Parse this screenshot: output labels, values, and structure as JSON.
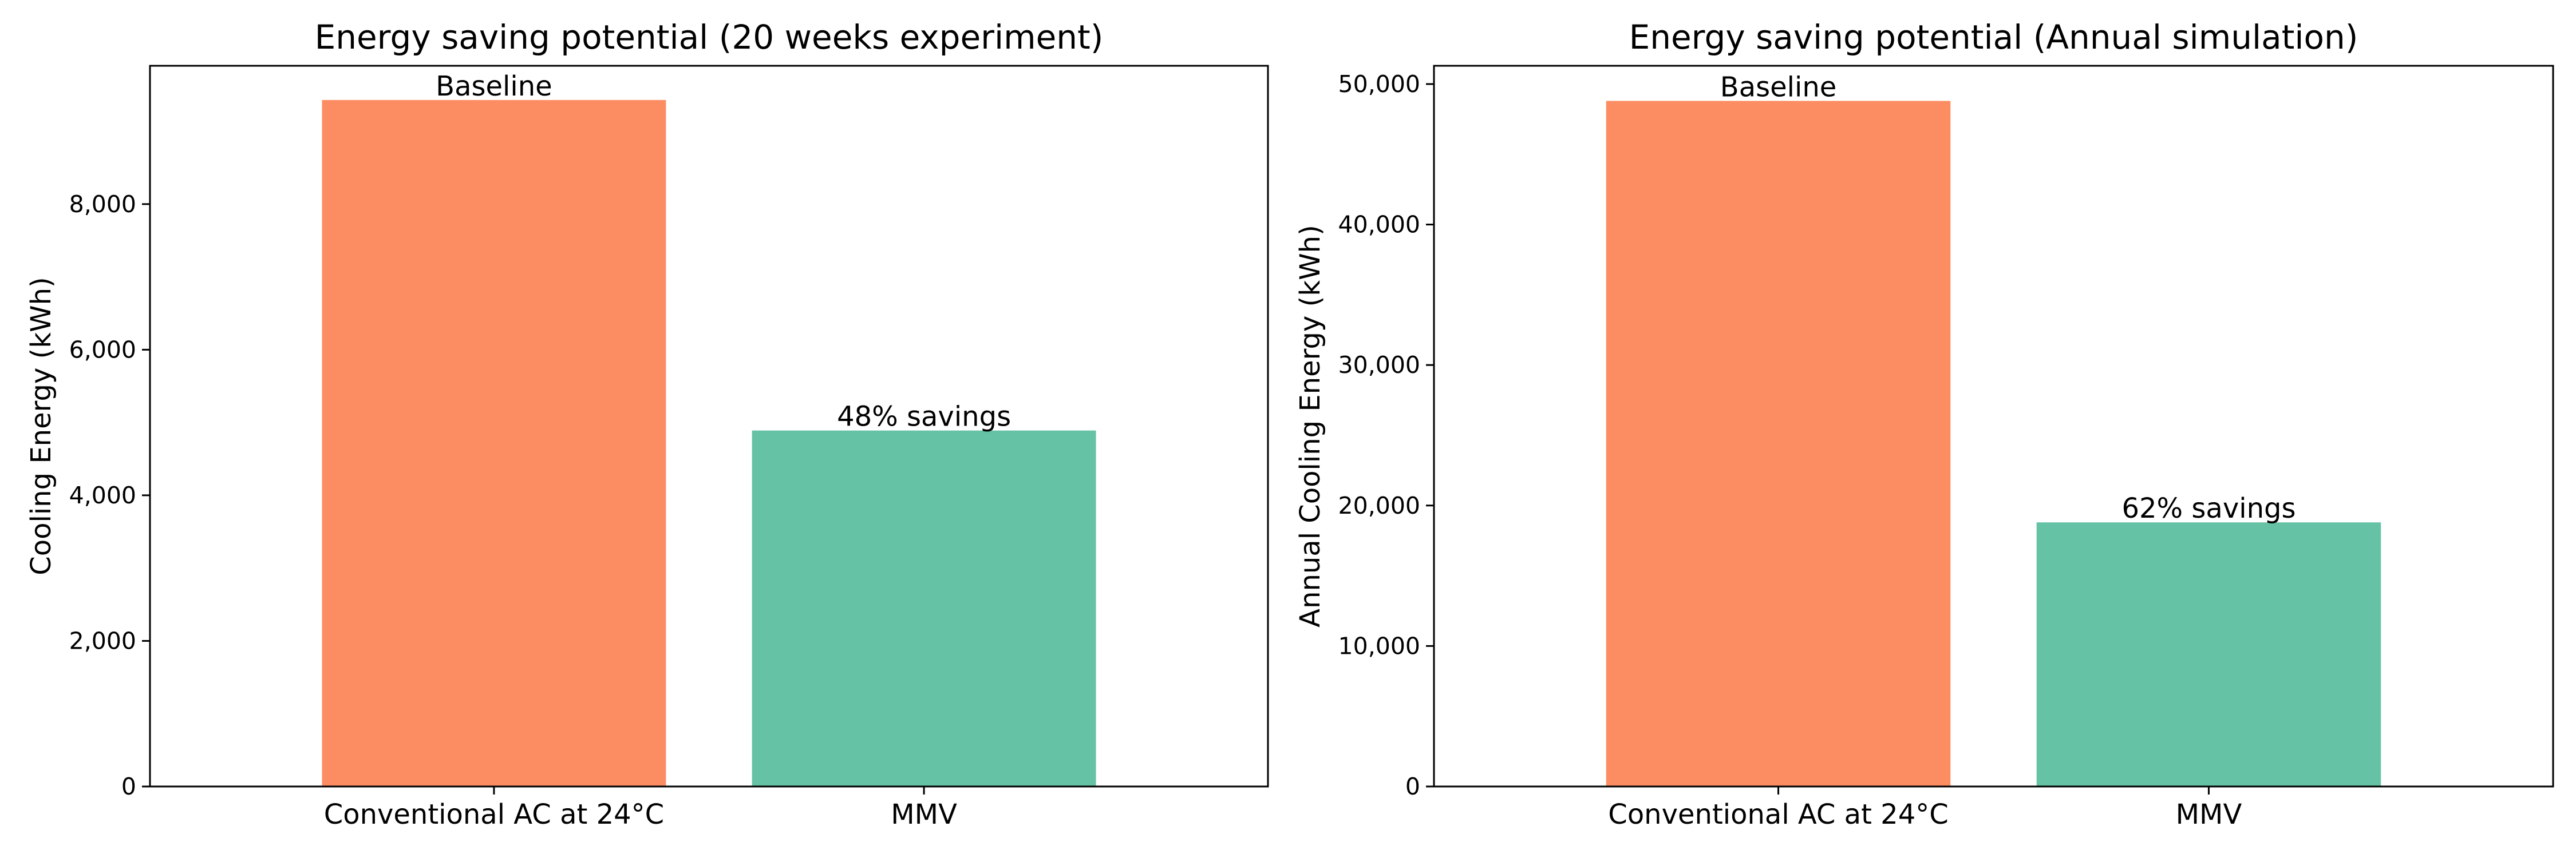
{
  "chart_data": [
    {
      "type": "bar",
      "title": "Energy saving potential (20 weeks experiment)",
      "xlabel": "",
      "ylabel": "Cooling Energy (kWh)",
      "categories": [
        "Conventional AC at 24°C",
        "MMV"
      ],
      "values": [
        9430,
        4890
      ],
      "bar_labels": [
        "Baseline",
        "48% savings"
      ],
      "colors": [
        "#fc8d62",
        "#66c2a5"
      ],
      "ylim": [
        0,
        9900
      ],
      "yticks": [
        0,
        2000,
        4000,
        6000,
        8000
      ],
      "ytick_labels": [
        "0",
        "2,000",
        "4,000",
        "6,000",
        "8,000"
      ],
      "grid": false,
      "legend": "none"
    },
    {
      "type": "bar",
      "title": "Energy saving potential (Annual simulation)",
      "xlabel": "",
      "ylabel": "Annual Cooling Energy (kWh)",
      "categories": [
        "Conventional AC at 24°C",
        "MMV"
      ],
      "values": [
        48800,
        18800
      ],
      "bar_labels": [
        "Baseline",
        "62% savings"
      ],
      "colors": [
        "#fc8d62",
        "#66c2a5"
      ],
      "ylim": [
        0,
        51300
      ],
      "yticks": [
        0,
        10000,
        20000,
        30000,
        40000,
        50000
      ],
      "ytick_labels": [
        "0",
        "10,000",
        "20,000",
        "30,000",
        "40,000",
        "50,000"
      ],
      "grid": false,
      "legend": "none"
    }
  ]
}
